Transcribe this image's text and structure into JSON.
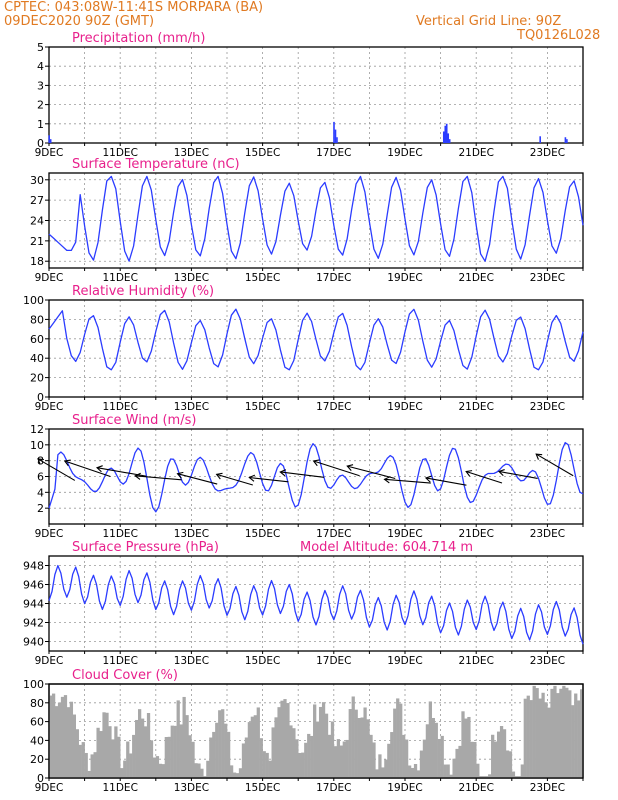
{
  "header": {
    "line1": "CPTEC:   043:08W-11:41S   MORPARA (BA)",
    "line2": "09DEC2020 90Z (GMT)",
    "grid_note": "Vertical Grid Line: 90Z",
    "code": "TQ0126L028"
  },
  "colors": {
    "header": "#e07a22",
    "panel_title": "#e8208c",
    "line": "#2b3cff",
    "bar": "#2b3cff",
    "cloud": "#a8a8a8",
    "axis": "#000000",
    "grid": "#9a9a9a",
    "wind_arrow": "#000000"
  },
  "x_ticks": [
    "9DEC",
    "11DEC",
    "13DEC",
    "15DEC",
    "17DEC",
    "19DEC",
    "21DEC",
    "23DEC"
  ],
  "chart_data": [
    {
      "type": "bar",
      "title": "Precipitation (mm/h)",
      "ylim": [
        0,
        5
      ],
      "yticks": [
        "0",
        "1",
        "2",
        "3",
        "4",
        "5"
      ],
      "x_unit": "hours since 09DEC2020 00Z",
      "bars": [
        [
          0,
          0.4
        ],
        [
          1,
          0.2
        ],
        [
          192,
          1.1
        ],
        [
          193,
          0.7
        ],
        [
          194,
          0.3
        ],
        [
          266,
          0.6
        ],
        [
          267,
          0.9
        ],
        [
          268,
          1.0
        ],
        [
          269,
          0.5
        ],
        [
          270,
          0.2
        ],
        [
          331,
          0.35
        ],
        [
          348,
          0.3
        ],
        [
          349,
          0.2
        ]
      ]
    },
    {
      "type": "line",
      "title": "Surface Temperature (nC)",
      "ylim": [
        17,
        31
      ],
      "yticks": [
        "18",
        "21",
        "24",
        "27",
        "30"
      ],
      "min": 18,
      "max": 30.5
    },
    {
      "type": "line",
      "title": "Relative Humidity (%)",
      "ylim": [
        0,
        100
      ],
      "yticks": [
        "0",
        "20",
        "40",
        "60",
        "80",
        "100"
      ],
      "min": 28,
      "max": 95
    },
    {
      "type": "line",
      "title": "Surface Wind (m/s)",
      "ylim": [
        0,
        12
      ],
      "yticks": [
        "2",
        "4",
        "6",
        "8",
        "10",
        "12"
      ],
      "min": 1.5,
      "max": 11.5,
      "arrows": "wind barbs pointing toward ENE/WSW, length ~40 px"
    },
    {
      "type": "line",
      "title": "Surface Pressure (hPa)",
      "ylim": [
        939,
        949
      ],
      "yticks": [
        "940",
        "942",
        "944",
        "946",
        "948"
      ],
      "note": "Model Altitude: 604.714 m",
      "min": 939.5,
      "max": 948
    },
    {
      "type": "area",
      "title": "Cloud Cover (%)",
      "ylim": [
        0,
        100
      ],
      "yticks": [
        "0",
        "20",
        "40",
        "60",
        "80",
        "100"
      ]
    }
  ]
}
